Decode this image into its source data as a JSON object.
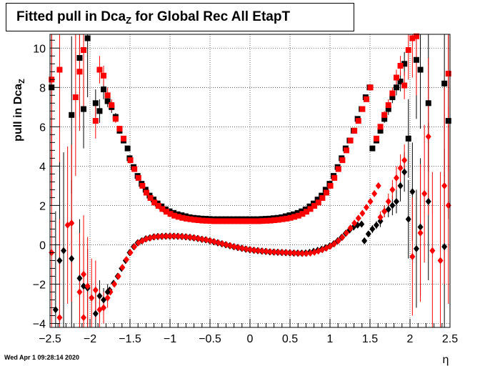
{
  "title": {
    "main": "Fitted pull in Dca",
    "subscript": "Z",
    "suffix": " for Global Rec All EtapT"
  },
  "footer": "Wed Apr  1 09:28:14 2020",
  "colors": {
    "black": "#000000",
    "red": "#ff0000",
    "grid": "#000000"
  },
  "chart_data": {
    "type": "scatter",
    "title": "Fitted pull in DcaZ for Global Rec All EtapT",
    "xlabel": "η",
    "ylabel": "pull in Dca_Z",
    "xlim": [
      -2.5,
      2.5
    ],
    "ylim": [
      -4.2,
      10.7
    ],
    "xticks": [
      -2.5,
      -2,
      -1.5,
      -1,
      -0.5,
      0,
      0.5,
      1,
      1.5,
      2,
      2.5
    ],
    "xtick_labels": [
      "−2.5",
      "−2",
      "−1.5",
      "−1",
      "−0.5",
      "0",
      "0.5",
      "1",
      "1.5",
      "2",
      "2.5"
    ],
    "yticks": [
      -4,
      -2,
      0,
      2,
      4,
      6,
      8,
      10
    ],
    "ytick_labels": [
      "−4",
      "−2",
      "0",
      "2",
      "4",
      "6",
      "8",
      "10"
    ],
    "grid": true,
    "series": [
      {
        "marker": "square",
        "color": "#000000",
        "points": [
          {
            "x": -2.48,
            "y": 8.0,
            "e": 6.0
          },
          {
            "x": -2.23,
            "y": 6.6,
            "e": 4.0
          },
          {
            "x": -2.13,
            "y": 9.5,
            "e": 3.0
          },
          {
            "x": -2.08,
            "y": 6.9,
            "e": 2.0
          },
          {
            "x": -2.03,
            "y": 10.5,
            "e": 3.0
          },
          {
            "x": -1.93,
            "y": 7.2,
            "e": 0.7
          },
          {
            "x": -1.88,
            "y": 6.8,
            "e": 0.6
          },
          {
            "x": -1.83,
            "y": 7.9,
            "e": 0.5
          },
          {
            "x": -1.78,
            "y": 7.3,
            "e": 0.3
          },
          {
            "x": -1.73,
            "y": 7.0,
            "e": 0.3
          },
          {
            "x": -1.68,
            "y": 6.5,
            "e": 0.2
          },
          {
            "x": -1.63,
            "y": 5.8,
            "e": 0.15
          },
          {
            "x": -1.58,
            "y": 5.3,
            "e": 0.1
          },
          {
            "x": -1.53,
            "y": 4.9,
            "e": 0.1
          },
          {
            "x": 1.53,
            "y": 4.9,
            "e": 0.1
          },
          {
            "x": 1.58,
            "y": 5.3,
            "e": 0.1
          },
          {
            "x": 1.63,
            "y": 5.8,
            "e": 0.15
          },
          {
            "x": 1.68,
            "y": 6.4,
            "e": 0.2
          },
          {
            "x": 1.73,
            "y": 6.9,
            "e": 0.3
          },
          {
            "x": 1.78,
            "y": 7.5,
            "e": 0.3
          },
          {
            "x": 1.83,
            "y": 8.0,
            "e": 0.4
          },
          {
            "x": 1.88,
            "y": 8.3,
            "e": 0.5
          },
          {
            "x": 1.93,
            "y": 9.2,
            "e": 0.6
          },
          {
            "x": 1.98,
            "y": 5.4,
            "e": 2.0
          },
          {
            "x": 2.08,
            "y": 9.4,
            "e": 3.0
          },
          {
            "x": 2.13,
            "y": 8.9,
            "e": 3.0
          },
          {
            "x": 2.23,
            "y": 7.2,
            "e": 3.5
          },
          {
            "x": 2.43,
            "y": 8.2,
            "e": 5.0
          },
          {
            "x": 2.48,
            "y": 6.3,
            "e": 5.0
          }
        ]
      },
      {
        "marker": "square",
        "color": "#ff0000",
        "points": [
          {
            "x": -2.48,
            "y": 8.4,
            "e": 6.0
          },
          {
            "x": -2.38,
            "y": 8.9,
            "e": 5.0
          },
          {
            "x": -2.18,
            "y": 7.5,
            "e": 4.0
          },
          {
            "x": -2.13,
            "y": 8.8,
            "e": 3.0
          },
          {
            "x": -2.08,
            "y": 9.9,
            "e": 3.0
          },
          {
            "x": -1.93,
            "y": 6.3,
            "e": 0.9
          },
          {
            "x": -1.88,
            "y": 8.9,
            "e": 0.7
          },
          {
            "x": -1.83,
            "y": 8.6,
            "e": 0.5
          },
          {
            "x": -1.78,
            "y": 7.6,
            "e": 0.4
          },
          {
            "x": -1.73,
            "y": 7.1,
            "e": 0.3
          },
          {
            "x": -1.68,
            "y": 6.4,
            "e": 0.2
          },
          {
            "x": -1.63,
            "y": 5.9,
            "e": 0.15
          },
          {
            "x": -1.58,
            "y": 5.4,
            "e": 0.1
          },
          {
            "x": 1.58,
            "y": 5.4,
            "e": 0.1
          },
          {
            "x": 1.63,
            "y": 6.0,
            "e": 0.15
          },
          {
            "x": 1.68,
            "y": 6.6,
            "e": 0.2
          },
          {
            "x": 1.73,
            "y": 7.1,
            "e": 0.3
          },
          {
            "x": 1.78,
            "y": 7.7,
            "e": 0.3
          },
          {
            "x": 1.83,
            "y": 8.5,
            "e": 0.4
          },
          {
            "x": 1.88,
            "y": 9.1,
            "e": 0.5
          },
          {
            "x": 1.93,
            "y": 8.1,
            "e": 0.7
          },
          {
            "x": 1.98,
            "y": 9.9,
            "e": 1.5
          },
          {
            "x": 2.03,
            "y": 10.5,
            "e": 2.0
          },
          {
            "x": 2.08,
            "y": 10.6,
            "e": 3.0
          },
          {
            "x": 2.48,
            "y": 8.7,
            "e": 5.0
          }
        ]
      },
      {
        "marker": "diamond",
        "color": "#000000",
        "points": [
          {
            "x": -2.43,
            "y": -3.3,
            "e": 5.0
          },
          {
            "x": -2.38,
            "y": -0.8,
            "e": 5.0
          },
          {
            "x": -2.33,
            "y": -0.3,
            "e": 5.0
          },
          {
            "x": -2.23,
            "y": -0.7,
            "e": 4.0
          },
          {
            "x": -2.13,
            "y": -1.7,
            "e": 3.0
          },
          {
            "x": -2.08,
            "y": -2.1,
            "e": 2.5
          },
          {
            "x": -2.03,
            "y": -2.2,
            "e": 2.0
          },
          {
            "x": -1.93,
            "y": -3.5,
            "e": 1.2
          },
          {
            "x": -1.88,
            "y": -2.6,
            "e": 0.8
          },
          {
            "x": -1.83,
            "y": -2.8,
            "e": 0.6
          },
          {
            "x": -1.78,
            "y": -2.4,
            "e": 0.4
          },
          {
            "x": 1.43,
            "y": 0.2,
            "e": 0.1
          },
          {
            "x": 1.48,
            "y": 0.55,
            "e": 0.15
          },
          {
            "x": 1.53,
            "y": 0.8,
            "e": 0.2
          },
          {
            "x": 1.58,
            "y": 1.0,
            "e": 0.2
          },
          {
            "x": 1.63,
            "y": 1.2,
            "e": 0.3
          },
          {
            "x": 1.68,
            "y": 1.7,
            "e": 0.3
          },
          {
            "x": 1.73,
            "y": 1.8,
            "e": 0.4
          },
          {
            "x": 1.78,
            "y": 2.0,
            "e": 0.5
          },
          {
            "x": 1.83,
            "y": 2.2,
            "e": 0.6
          },
          {
            "x": 1.88,
            "y": 3.0,
            "e": 0.8
          },
          {
            "x": 1.93,
            "y": 3.7,
            "e": 1.0
          },
          {
            "x": 1.98,
            "y": 1.3,
            "e": 2.0
          },
          {
            "x": 2.03,
            "y": 2.7,
            "e": 2.5
          },
          {
            "x": 2.08,
            "y": -0.2,
            "e": 3.0
          },
          {
            "x": 2.13,
            "y": 0.9,
            "e": 3.5
          },
          {
            "x": 2.23,
            "y": 2.2,
            "e": 4.0
          },
          {
            "x": 2.43,
            "y": -0.1,
            "e": 5.0
          }
        ]
      },
      {
        "marker": "diamond",
        "color": "#ff0000",
        "points": [
          {
            "x": -2.48,
            "y": -0.4,
            "e": 6.0
          },
          {
            "x": -2.38,
            "y": -3.7,
            "e": 5.0
          },
          {
            "x": -2.28,
            "y": 1.0,
            "e": 4.0
          },
          {
            "x": -2.23,
            "y": 1.1,
            "e": 4.0
          },
          {
            "x": -2.13,
            "y": -2.4,
            "e": 3.0
          },
          {
            "x": -2.08,
            "y": -1.5,
            "e": 3.0
          },
          {
            "x": -2.03,
            "y": -2.1,
            "e": 2.5
          },
          {
            "x": -1.98,
            "y": -2.7,
            "e": 2.0
          },
          {
            "x": -1.93,
            "y": -2.3,
            "e": 1.5
          },
          {
            "x": -1.88,
            "y": -3.3,
            "e": 1.0
          },
          {
            "x": -1.83,
            "y": -3.2,
            "e": 0.8
          },
          {
            "x": -1.78,
            "y": -2.7,
            "e": 0.5
          },
          {
            "x": -2.08,
            "y": -3.7,
            "e": 3.0
          },
          {
            "x": 1.63,
            "y": 1.4,
            "e": 0.3
          },
          {
            "x": 1.68,
            "y": 1.7,
            "e": 0.3
          },
          {
            "x": 1.73,
            "y": 2.2,
            "e": 0.4
          },
          {
            "x": 1.78,
            "y": 2.8,
            "e": 0.5
          },
          {
            "x": 1.83,
            "y": 3.4,
            "e": 0.6
          },
          {
            "x": 1.88,
            "y": 3.9,
            "e": 0.7
          },
          {
            "x": 1.93,
            "y": 4.3,
            "e": 0.8
          },
          {
            "x": 2.03,
            "y": -0.6,
            "e": 3.0
          },
          {
            "x": 2.13,
            "y": 0.6,
            "e": 3.5
          },
          {
            "x": 2.18,
            "y": 2.6,
            "e": 3.5
          },
          {
            "x": 2.23,
            "y": 5.5,
            "e": 4.0
          },
          {
            "x": 2.28,
            "y": -0.3,
            "e": 4.0
          },
          {
            "x": 2.38,
            "y": -0.8,
            "e": 4.5
          },
          {
            "x": 2.43,
            "y": 3.0,
            "e": 5.0
          },
          {
            "x": 2.48,
            "y": 2.0,
            "e": 5.0
          }
        ]
      }
    ],
    "dense_curves": [
      {
        "marker": "square",
        "color": "#000000",
        "dx": -0.005,
        "x_start": -1.5,
        "x_end": 1.5,
        "x_step": 0.05,
        "y": [
          4.4,
          3.95,
          3.5,
          3.1,
          2.8,
          2.5,
          2.3,
          2.1,
          1.95,
          1.8,
          1.7,
          1.62,
          1.55,
          1.5,
          1.45,
          1.4,
          1.37,
          1.35,
          1.33,
          1.32,
          1.31,
          1.3,
          1.3,
          1.3,
          1.3,
          1.3,
          1.3,
          1.3,
          1.3,
          1.3,
          1.3,
          1.3,
          1.3,
          1.31,
          1.32,
          1.33,
          1.35,
          1.37,
          1.4,
          1.45,
          1.5,
          1.55,
          1.62,
          1.7,
          1.8,
          1.95,
          2.1,
          2.3,
          2.5,
          2.8,
          3.1,
          3.5,
          3.95,
          4.4,
          4.9,
          5.3,
          5.8,
          6.4,
          6.9,
          7.5,
          8.0
        ]
      },
      {
        "marker": "square",
        "color": "#ff0000",
        "dx": 0.005,
        "x_start": -1.5,
        "x_end": 1.5,
        "x_step": 0.05,
        "y": [
          4.3,
          3.85,
          3.4,
          3.0,
          2.65,
          2.38,
          2.15,
          1.98,
          1.82,
          1.68,
          1.57,
          1.48,
          1.42,
          1.37,
          1.33,
          1.3,
          1.27,
          1.25,
          1.23,
          1.22,
          1.21,
          1.2,
          1.2,
          1.2,
          1.2,
          1.2,
          1.2,
          1.2,
          1.2,
          1.2,
          1.2,
          1.2,
          1.2,
          1.21,
          1.22,
          1.23,
          1.25,
          1.27,
          1.3,
          1.33,
          1.37,
          1.42,
          1.48,
          1.57,
          1.68,
          1.82,
          1.98,
          2.15,
          2.38,
          2.65,
          3.0,
          3.4,
          3.85,
          4.3,
          4.8,
          5.3,
          5.8,
          6.3,
          6.9,
          7.4,
          8.0
        ]
      },
      {
        "marker": "diamond",
        "color": "#000000",
        "dx": -0.005,
        "x_start": -1.75,
        "x_end": 1.4,
        "x_step": 0.05,
        "y": [
          -2.3,
          -1.95,
          -1.6,
          -1.2,
          -0.8,
          -0.4,
          -0.1,
          0.1,
          0.2,
          0.3,
          0.35,
          0.4,
          0.42,
          0.43,
          0.44,
          0.44,
          0.44,
          0.43,
          0.42,
          0.4,
          0.38,
          0.35,
          0.32,
          0.28,
          0.25,
          0.2,
          0.15,
          0.1,
          0.05,
          0.0,
          -0.05,
          -0.1,
          -0.14,
          -0.18,
          -0.22,
          -0.25,
          -0.28,
          -0.3,
          -0.32,
          -0.34,
          -0.36,
          -0.37,
          -0.38,
          -0.39,
          -0.4,
          -0.41,
          -0.42,
          -0.42,
          -0.42,
          -0.41,
          -0.38,
          -0.33,
          -0.28,
          -0.22,
          -0.15,
          -0.06,
          0.05,
          0.2,
          0.38,
          0.58,
          0.75,
          0.9,
          1.0,
          1.05
        ]
      },
      {
        "marker": "diamond",
        "color": "#ff0000",
        "dx": 0.005,
        "x_start": -1.75,
        "x_end": 1.6,
        "x_step": 0.05,
        "y": [
          -2.4,
          -2.0,
          -1.6,
          -1.15,
          -0.75,
          -0.4,
          -0.1,
          0.1,
          0.2,
          0.3,
          0.35,
          0.4,
          0.42,
          0.43,
          0.44,
          0.44,
          0.44,
          0.43,
          0.42,
          0.4,
          0.38,
          0.35,
          0.32,
          0.28,
          0.25,
          0.2,
          0.15,
          0.1,
          0.05,
          0.0,
          -0.05,
          -0.1,
          -0.14,
          -0.18,
          -0.22,
          -0.25,
          -0.28,
          -0.3,
          -0.32,
          -0.34,
          -0.36,
          -0.37,
          -0.38,
          -0.39,
          -0.4,
          -0.41,
          -0.42,
          -0.43,
          -0.44,
          -0.44,
          -0.42,
          -0.38,
          -0.32,
          -0.25,
          -0.17,
          -0.07,
          0.05,
          0.2,
          0.38,
          0.6,
          0.85,
          1.1,
          1.35,
          1.6,
          1.9,
          2.2,
          2.6,
          3.0
        ]
      }
    ]
  }
}
